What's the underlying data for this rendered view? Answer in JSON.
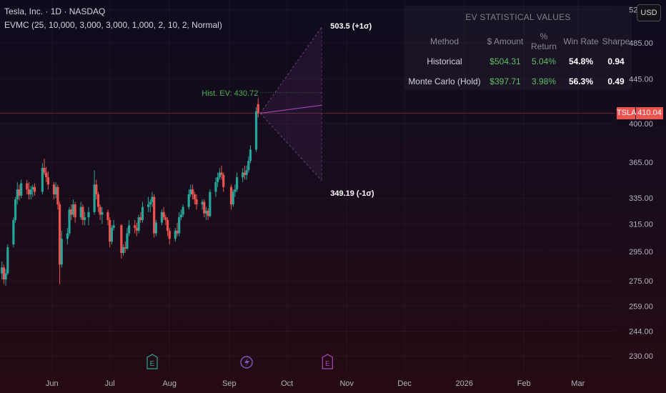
{
  "header": {
    "title": "Tesla, Inc. · 1D · NASDAQ",
    "indicator": "EVMC (25, 10,000, 3,000, 3,000, 1,000, 2, 10, 2, Normal)"
  },
  "currency_button": "USD",
  "ev_panel": {
    "title": "EV STATISTICAL VALUES",
    "columns": [
      "Method",
      "$ Amount",
      "% Return",
      "Win Rate",
      "Sharpe"
    ],
    "rows": [
      {
        "method": "Historical",
        "amount": "$504.31",
        "return": "5.04%",
        "win_rate": "54.8%",
        "sharpe": "0.94"
      },
      {
        "method": "Monte Carlo (Hold)",
        "amount": "$397.71",
        "return": "3.98%",
        "win_rate": "56.3%",
        "sharpe": "0.49"
      }
    ]
  },
  "projection": {
    "upper_label": "503.5 (+1σ)",
    "lower_label": "349.19 (-1σ)",
    "hist_ev_label": "Hist. EV: 430.72",
    "upper": 503.5,
    "lower": 349.19,
    "hist_ev": 430.72,
    "mid_target": 418
  },
  "symbol_tag": {
    "symbol": "TSLA",
    "price": "410.04",
    "value": 410.04
  },
  "colors": {
    "up": "#26a69a",
    "down": "#ef5350",
    "cone": "#8e44ad",
    "hist_ev": "#4caf50",
    "event_earnings": "#26a69a",
    "event_split": "#7e57c2",
    "event_future": "#ab47bc"
  },
  "events": [
    {
      "date": "2025-07-23",
      "label": "E",
      "type": "earnings"
    },
    {
      "date": "2025-09-10",
      "label": "",
      "type": "split",
      "icon": "lightning-icon"
    },
    {
      "date": "2025-10-22",
      "label": "E",
      "type": "future-earnings"
    }
  ],
  "chart_data": {
    "type": "candlestick",
    "title": "",
    "xlabel": "",
    "ylabel": "",
    "x_range": [
      "2025-05-05",
      "2026-03-20"
    ],
    "y_range": [
      222,
      537
    ],
    "y_scale": "log",
    "grid": true,
    "x_ticks": [
      {
        "date": "2025-06-01",
        "label": "Jun"
      },
      {
        "date": "2025-07-01",
        "label": "Jul"
      },
      {
        "date": "2025-08-01",
        "label": "Aug"
      },
      {
        "date": "2025-09-01",
        "label": "Sep"
      },
      {
        "date": "2025-10-01",
        "label": "Oct"
      },
      {
        "date": "2025-11-01",
        "label": "Nov"
      },
      {
        "date": "2025-12-01",
        "label": "Dec"
      },
      {
        "date": "2026-01-01",
        "label": "2026"
      },
      {
        "date": "2026-02-01",
        "label": "Feb"
      },
      {
        "date": "2026-03-01",
        "label": "Mar"
      }
    ],
    "y_ticks": [
      {
        "value": 525,
        "label": "525.00"
      },
      {
        "value": 485,
        "label": "485.00"
      },
      {
        "value": 445,
        "label": "445.00"
      },
      {
        "value": 400,
        "label": "400.00"
      },
      {
        "value": 365,
        "label": "365.00"
      },
      {
        "value": 335,
        "label": "335.00"
      },
      {
        "value": 315,
        "label": "315.00"
      },
      {
        "value": 295,
        "label": "295.00"
      },
      {
        "value": 275,
        "label": "275.00"
      },
      {
        "value": 259,
        "label": "259.00"
      },
      {
        "value": 244,
        "label": "244.00"
      },
      {
        "value": 230,
        "label": "230.00"
      }
    ],
    "candles": [
      {
        "date": "2025-05-06",
        "o": 280,
        "h": 288,
        "l": 276,
        "c": 284
      },
      {
        "date": "2025-05-07",
        "o": 284,
        "h": 286,
        "l": 273,
        "c": 276
      },
      {
        "date": "2025-05-08",
        "o": 276,
        "h": 283,
        "l": 272,
        "c": 280
      },
      {
        "date": "2025-05-09",
        "o": 280,
        "h": 300,
        "l": 279,
        "c": 298
      },
      {
        "date": "2025-05-12",
        "o": 300,
        "h": 320,
        "l": 298,
        "c": 318
      },
      {
        "date": "2025-05-13",
        "o": 318,
        "h": 336,
        "l": 316,
        "c": 334
      },
      {
        "date": "2025-05-14",
        "o": 334,
        "h": 348,
        "l": 330,
        "c": 342
      },
      {
        "date": "2025-05-15",
        "o": 342,
        "h": 346,
        "l": 333,
        "c": 337
      },
      {
        "date": "2025-05-16",
        "o": 337,
        "h": 350,
        "l": 335,
        "c": 347
      },
      {
        "date": "2025-05-19",
        "o": 347,
        "h": 350,
        "l": 338,
        "c": 342
      },
      {
        "date": "2025-05-20",
        "o": 342,
        "h": 348,
        "l": 334,
        "c": 338
      },
      {
        "date": "2025-05-21",
        "o": 338,
        "h": 345,
        "l": 334,
        "c": 342
      },
      {
        "date": "2025-05-22",
        "o": 342,
        "h": 346,
        "l": 336,
        "c": 344
      },
      {
        "date": "2025-05-23",
        "o": 344,
        "h": 347,
        "l": 337,
        "c": 340
      },
      {
        "date": "2025-05-27",
        "o": 340,
        "h": 364,
        "l": 338,
        "c": 360
      },
      {
        "date": "2025-05-28",
        "o": 360,
        "h": 368,
        "l": 354,
        "c": 356
      },
      {
        "date": "2025-05-29",
        "o": 356,
        "h": 361,
        "l": 348,
        "c": 352
      },
      {
        "date": "2025-05-30",
        "o": 352,
        "h": 357,
        "l": 342,
        "c": 346
      },
      {
        "date": "2025-06-02",
        "o": 346,
        "h": 348,
        "l": 334,
        "c": 338
      },
      {
        "date": "2025-06-03",
        "o": 338,
        "h": 348,
        "l": 335,
        "c": 344
      },
      {
        "date": "2025-06-04",
        "o": 344,
        "h": 346,
        "l": 326,
        "c": 330
      },
      {
        "date": "2025-06-05",
        "o": 330,
        "h": 332,
        "l": 273,
        "c": 286
      },
      {
        "date": "2025-06-06",
        "o": 286,
        "h": 310,
        "l": 284,
        "c": 304
      },
      {
        "date": "2025-06-09",
        "o": 304,
        "h": 312,
        "l": 300,
        "c": 308
      },
      {
        "date": "2025-06-10",
        "o": 308,
        "h": 328,
        "l": 306,
        "c": 326
      },
      {
        "date": "2025-06-11",
        "o": 326,
        "h": 330,
        "l": 318,
        "c": 322
      },
      {
        "date": "2025-06-12",
        "o": 322,
        "h": 334,
        "l": 320,
        "c": 330
      },
      {
        "date": "2025-06-13",
        "o": 330,
        "h": 332,
        "l": 316,
        "c": 320
      },
      {
        "date": "2025-06-16",
        "o": 320,
        "h": 332,
        "l": 318,
        "c": 328
      },
      {
        "date": "2025-06-17",
        "o": 328,
        "h": 330,
        "l": 314,
        "c": 318
      },
      {
        "date": "2025-06-18",
        "o": 318,
        "h": 324,
        "l": 314,
        "c": 320
      },
      {
        "date": "2025-06-20",
        "o": 320,
        "h": 328,
        "l": 314,
        "c": 324
      },
      {
        "date": "2025-06-23",
        "o": 324,
        "h": 358,
        "l": 322,
        "c": 346
      },
      {
        "date": "2025-06-24",
        "o": 346,
        "h": 350,
        "l": 334,
        "c": 338
      },
      {
        "date": "2025-06-25",
        "o": 338,
        "h": 340,
        "l": 324,
        "c": 328
      },
      {
        "date": "2025-06-26",
        "o": 328,
        "h": 330,
        "l": 318,
        "c": 322
      },
      {
        "date": "2025-06-27",
        "o": 322,
        "h": 328,
        "l": 315,
        "c": 324
      },
      {
        "date": "2025-06-30",
        "o": 324,
        "h": 326,
        "l": 314,
        "c": 318
      },
      {
        "date": "2025-07-01",
        "o": 318,
        "h": 320,
        "l": 298,
        "c": 302
      },
      {
        "date": "2025-07-02",
        "o": 302,
        "h": 314,
        "l": 300,
        "c": 312
      },
      {
        "date": "2025-07-03",
        "o": 312,
        "h": 318,
        "l": 310,
        "c": 314
      },
      {
        "date": "2025-07-07",
        "o": 314,
        "h": 315,
        "l": 290,
        "c": 294
      },
      {
        "date": "2025-07-08",
        "o": 294,
        "h": 300,
        "l": 292,
        "c": 298
      },
      {
        "date": "2025-07-09",
        "o": 298,
        "h": 302,
        "l": 294,
        "c": 297
      },
      {
        "date": "2025-07-10",
        "o": 297,
        "h": 312,
        "l": 296,
        "c": 308
      },
      {
        "date": "2025-07-11",
        "o": 308,
        "h": 318,
        "l": 306,
        "c": 314
      },
      {
        "date": "2025-07-14",
        "o": 314,
        "h": 318,
        "l": 308,
        "c": 312
      },
      {
        "date": "2025-07-15",
        "o": 312,
        "h": 316,
        "l": 306,
        "c": 310
      },
      {
        "date": "2025-07-16",
        "o": 310,
        "h": 322,
        "l": 308,
        "c": 320
      },
      {
        "date": "2025-07-17",
        "o": 320,
        "h": 324,
        "l": 316,
        "c": 318
      },
      {
        "date": "2025-07-18",
        "o": 318,
        "h": 332,
        "l": 316,
        "c": 328
      },
      {
        "date": "2025-07-21",
        "o": 328,
        "h": 336,
        "l": 324,
        "c": 330
      },
      {
        "date": "2025-07-22",
        "o": 330,
        "h": 334,
        "l": 324,
        "c": 332
      },
      {
        "date": "2025-07-23",
        "o": 332,
        "h": 340,
        "l": 328,
        "c": 336
      },
      {
        "date": "2025-07-24",
        "o": 336,
        "h": 338,
        "l": 305,
        "c": 308
      },
      {
        "date": "2025-07-25",
        "o": 308,
        "h": 318,
        "l": 306,
        "c": 316
      },
      {
        "date": "2025-07-28",
        "o": 316,
        "h": 326,
        "l": 314,
        "c": 324
      },
      {
        "date": "2025-07-29",
        "o": 324,
        "h": 328,
        "l": 318,
        "c": 320
      },
      {
        "date": "2025-07-30",
        "o": 320,
        "h": 322,
        "l": 314,
        "c": 318
      },
      {
        "date": "2025-07-31",
        "o": 318,
        "h": 320,
        "l": 306,
        "c": 310
      },
      {
        "date": "2025-08-01",
        "o": 310,
        "h": 312,
        "l": 300,
        "c": 304
      },
      {
        "date": "2025-08-04",
        "o": 304,
        "h": 312,
        "l": 302,
        "c": 310
      },
      {
        "date": "2025-08-05",
        "o": 310,
        "h": 316,
        "l": 306,
        "c": 308
      },
      {
        "date": "2025-08-06",
        "o": 308,
        "h": 324,
        "l": 306,
        "c": 320
      },
      {
        "date": "2025-08-07",
        "o": 320,
        "h": 326,
        "l": 318,
        "c": 322
      },
      {
        "date": "2025-08-08",
        "o": 322,
        "h": 330,
        "l": 320,
        "c": 328
      },
      {
        "date": "2025-08-11",
        "o": 328,
        "h": 342,
        "l": 326,
        "c": 338
      },
      {
        "date": "2025-08-12",
        "o": 338,
        "h": 346,
        "l": 336,
        "c": 342
      },
      {
        "date": "2025-08-13",
        "o": 342,
        "h": 346,
        "l": 334,
        "c": 338
      },
      {
        "date": "2025-08-14",
        "o": 338,
        "h": 340,
        "l": 330,
        "c": 334
      },
      {
        "date": "2025-08-15",
        "o": 334,
        "h": 338,
        "l": 326,
        "c": 330
      },
      {
        "date": "2025-08-18",
        "o": 330,
        "h": 334,
        "l": 326,
        "c": 332
      },
      {
        "date": "2025-08-19",
        "o": 332,
        "h": 334,
        "l": 320,
        "c": 323
      },
      {
        "date": "2025-08-20",
        "o": 323,
        "h": 328,
        "l": 318,
        "c": 325
      },
      {
        "date": "2025-08-21",
        "o": 325,
        "h": 327,
        "l": 318,
        "c": 321
      },
      {
        "date": "2025-08-22",
        "o": 321,
        "h": 342,
        "l": 320,
        "c": 340
      },
      {
        "date": "2025-08-25",
        "o": 340,
        "h": 352,
        "l": 336,
        "c": 348
      },
      {
        "date": "2025-08-26",
        "o": 348,
        "h": 356,
        "l": 344,
        "c": 352
      },
      {
        "date": "2025-08-27",
        "o": 352,
        "h": 360,
        "l": 350,
        "c": 356
      },
      {
        "date": "2025-08-28",
        "o": 356,
        "h": 362,
        "l": 350,
        "c": 354
      },
      {
        "date": "2025-08-29",
        "o": 354,
        "h": 356,
        "l": 340,
        "c": 344
      },
      {
        "date": "2025-09-02",
        "o": 344,
        "h": 346,
        "l": 326,
        "c": 330
      },
      {
        "date": "2025-09-03",
        "o": 330,
        "h": 342,
        "l": 328,
        "c": 340
      },
      {
        "date": "2025-09-04",
        "o": 340,
        "h": 346,
        "l": 336,
        "c": 342
      },
      {
        "date": "2025-09-05",
        "o": 342,
        "h": 356,
        "l": 340,
        "c": 352
      },
      {
        "date": "2025-09-08",
        "o": 352,
        "h": 360,
        "l": 348,
        "c": 356
      },
      {
        "date": "2025-09-09",
        "o": 356,
        "h": 362,
        "l": 350,
        "c": 354
      },
      {
        "date": "2025-09-10",
        "o": 354,
        "h": 362,
        "l": 350,
        "c": 358
      },
      {
        "date": "2025-09-11",
        "o": 358,
        "h": 370,
        "l": 356,
        "c": 366
      },
      {
        "date": "2025-09-12",
        "o": 366,
        "h": 380,
        "l": 364,
        "c": 376
      },
      {
        "date": "2025-09-15",
        "o": 376,
        "h": 416,
        "l": 374,
        "c": 412
      },
      {
        "date": "2025-09-16",
        "o": 419,
        "h": 425,
        "l": 406,
        "c": 410
      }
    ]
  }
}
